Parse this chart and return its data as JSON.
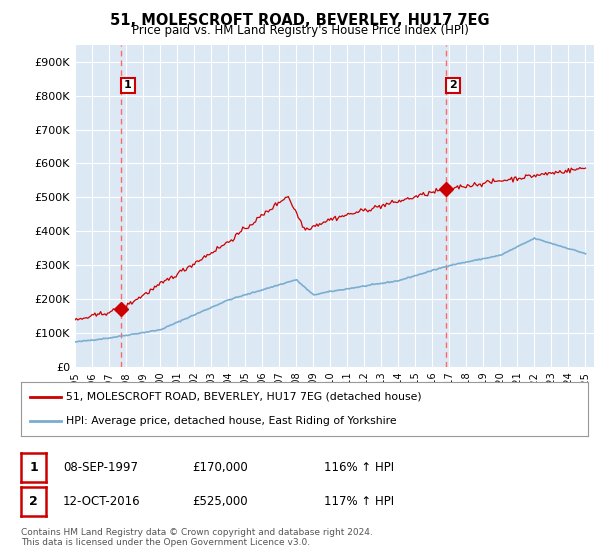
{
  "title": "51, MOLESCROFT ROAD, BEVERLEY, HU17 7EG",
  "subtitle": "Price paid vs. HM Land Registry's House Price Index (HPI)",
  "ylabel_ticks": [
    "£0",
    "£100K",
    "£200K",
    "£300K",
    "£400K",
    "£500K",
    "£600K",
    "£700K",
    "£800K",
    "£900K"
  ],
  "ytick_values": [
    0,
    100000,
    200000,
    300000,
    400000,
    500000,
    600000,
    700000,
    800000,
    900000
  ],
  "ylim": [
    0,
    950000
  ],
  "xlim_start": 1995.0,
  "xlim_end": 2025.5,
  "sale1_date": 1997.69,
  "sale1_price": 170000,
  "sale2_date": 2016.79,
  "sale2_price": 525000,
  "sale1_label": "1",
  "sale2_label": "2",
  "legend_line1": "51, MOLESCROFT ROAD, BEVERLEY, HU17 7EG (detached house)",
  "legend_line2": "HPI: Average price, detached house, East Riding of Yorkshire",
  "line_color_red": "#cc0000",
  "line_color_blue": "#7aadcf",
  "dashed_line_color": "#ff6666",
  "background_color": "#ffffff",
  "chart_bg_color": "#dce9f5",
  "grid_color": "#ffffff",
  "footer": "Contains HM Land Registry data © Crown copyright and database right 2024.\nThis data is licensed under the Open Government Licence v3.0.",
  "xticks": [
    1995,
    1996,
    1997,
    1998,
    1999,
    2000,
    2001,
    2002,
    2003,
    2004,
    2005,
    2006,
    2007,
    2008,
    2009,
    2010,
    2011,
    2012,
    2013,
    2014,
    2015,
    2016,
    2017,
    2018,
    2019,
    2020,
    2021,
    2022,
    2023,
    2024,
    2025
  ]
}
